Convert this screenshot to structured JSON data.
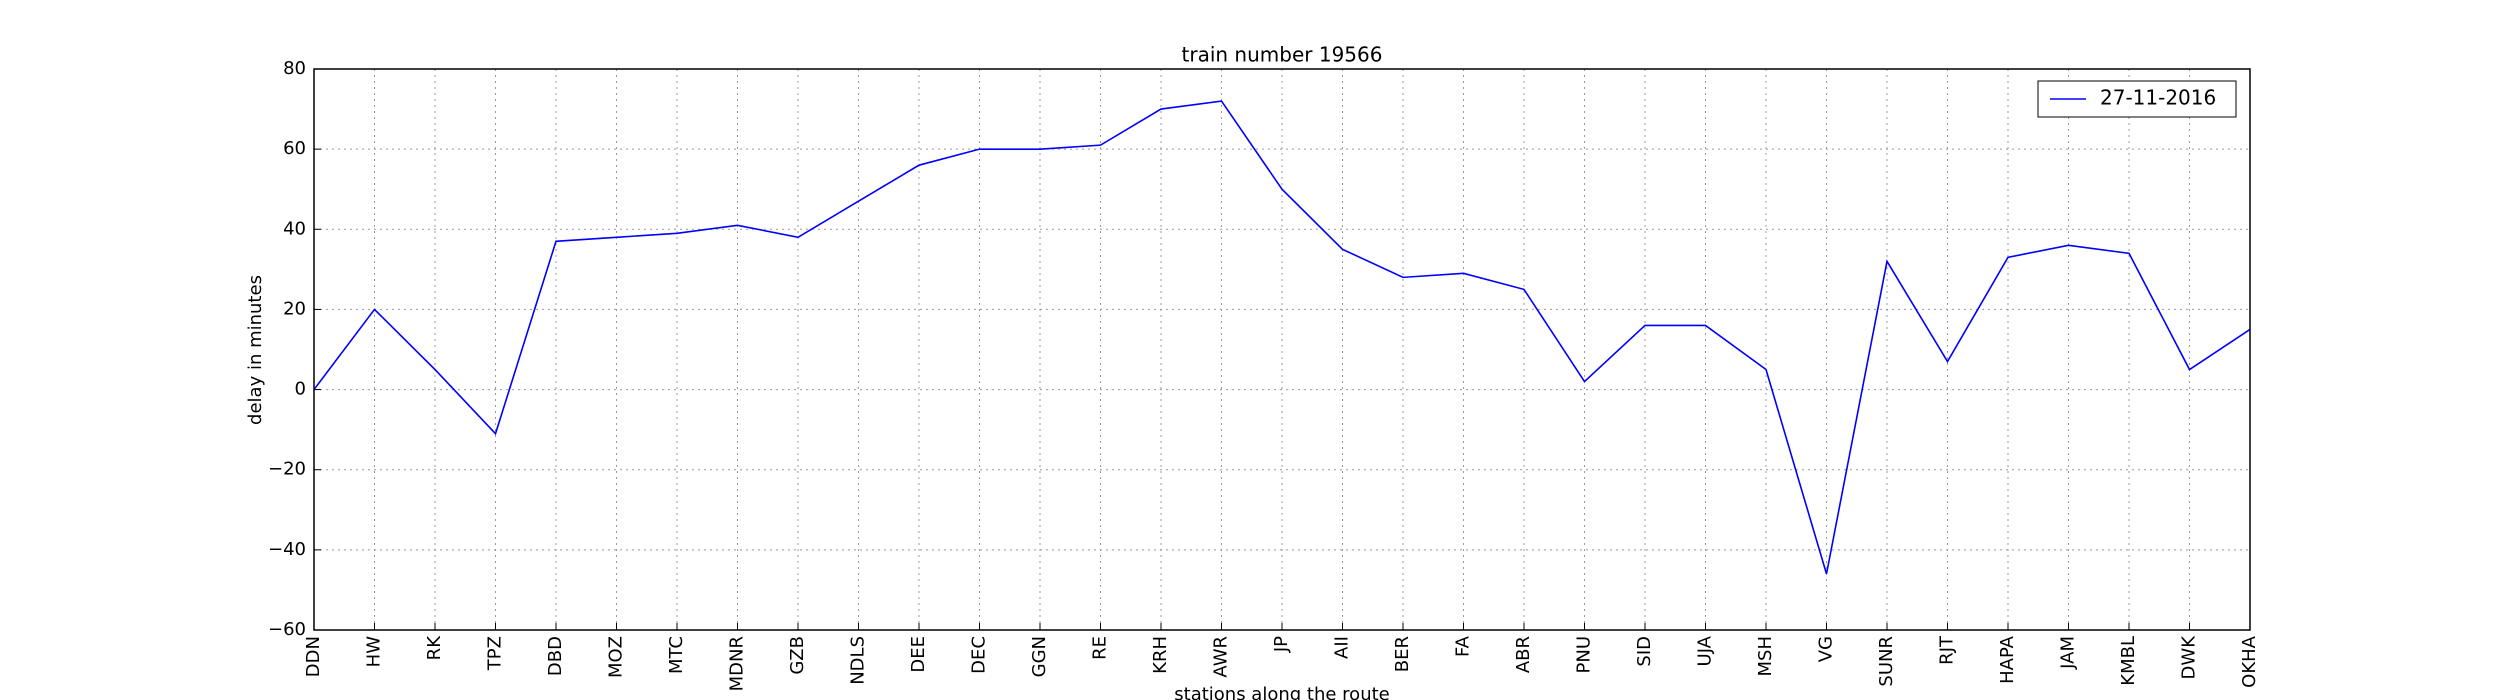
{
  "chart_data": {
    "type": "line",
    "title": "train number 19566",
    "x_label": "stations along the route",
    "y_label": "delay in minutes",
    "categories": [
      "DDN",
      "HW",
      "RK",
      "TPZ",
      "DBD",
      "MOZ",
      "MTC",
      "MDNR",
      "GZB",
      "NDLS",
      "DEE",
      "DEC",
      "GGN",
      "RE",
      "KRH",
      "AWR",
      "JP",
      "AII",
      "BER",
      "FA",
      "ABR",
      "PNU",
      "SID",
      "UJA",
      "MSH",
      "VG",
      "SUNR",
      "RJT",
      "HAPA",
      "JAM",
      "KMBL",
      "DWK",
      "OKHA"
    ],
    "series": [
      {
        "name": "27-11-2016",
        "color": "#0000ff",
        "values": [
          0,
          20,
          5,
          -11,
          37,
          38,
          39,
          41,
          38,
          47,
          56,
          60,
          60,
          61,
          70,
          72,
          50,
          35,
          28,
          29,
          25,
          2,
          16,
          16,
          5,
          -46,
          32,
          7,
          33,
          36,
          34,
          5,
          15
        ]
      }
    ],
    "ylim": [
      -60,
      80
    ],
    "yticks": [
      {
        "value": -60,
        "label": "−60"
      },
      {
        "value": -40,
        "label": "−40"
      },
      {
        "value": -20,
        "label": "−20"
      },
      0,
      20,
      40,
      60,
      80
    ],
    "grid": true,
    "legend": "upper right"
  }
}
